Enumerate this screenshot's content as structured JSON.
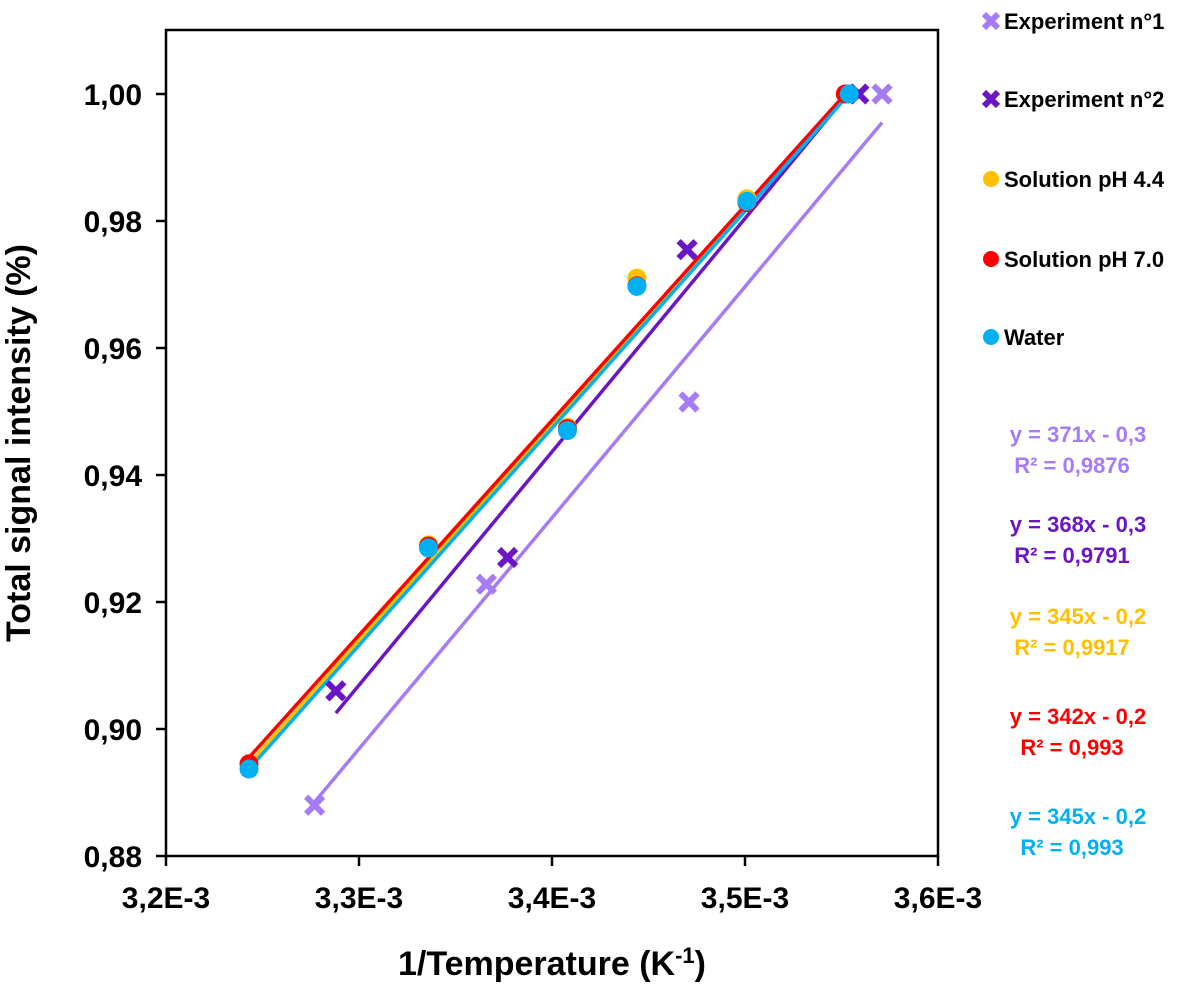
{
  "chart_data": {
    "type": "scatter",
    "xlabel": "1/Temperature (K",
    "xlabel_sup": "-1",
    "xlabel_end": ")",
    "ylabel": "Total signal intensity (%)",
    "xlim": [
      0.0032,
      0.0036
    ],
    "ylim": [
      0.88,
      1.01
    ],
    "x_ticks": [
      0.0032,
      0.0033,
      0.0034,
      0.0035,
      0.0036
    ],
    "x_tick_labels": [
      "3,2E-3",
      "3,3E-3",
      "3,4E-3",
      "3,5E-3",
      "3,6E-3"
    ],
    "y_ticks": [
      0.88,
      0.9,
      0.92,
      0.94,
      0.96,
      0.98,
      1.0
    ],
    "y_tick_labels": [
      "0,88",
      "0,90",
      "0,92",
      "0,94",
      "0,96",
      "0,98",
      "1,00"
    ],
    "grid": false,
    "legend_position": "right",
    "series": [
      {
        "name": "Experiment n°1",
        "marker": "x",
        "color": "#A57CF5",
        "points": [
          [
            0.003277,
            0.888
          ],
          [
            0.003366,
            0.9228
          ],
          [
            0.003471,
            0.9515
          ],
          [
            0.003571,
            1.0
          ]
        ],
        "trendline": [
          [
            0.003277,
            0.8885
          ],
          [
            0.003571,
            0.9955
          ]
        ],
        "equation": "y = 371x - 0,3",
        "r2": "R² = 0,9876"
      },
      {
        "name": "Experiment n°2",
        "marker": "x",
        "color": "#6A16C4",
        "points": [
          [
            0.003288,
            0.906
          ],
          [
            0.003377,
            0.927
          ],
          [
            0.00347,
            0.9755
          ],
          [
            0.003559,
            1.0
          ]
        ],
        "trendline": [
          [
            0.003288,
            0.9025
          ],
          [
            0.003552,
            0.9995
          ]
        ],
        "equation": "y = 368x - 0,3",
        "r2": "R² = 0,9791"
      },
      {
        "name": "Solution pH 4.4",
        "marker": "circle",
        "color": "#FFC000",
        "points": [
          [
            0.003243,
            0.8945
          ],
          [
            0.003336,
            0.929
          ],
          [
            0.003408,
            0.9475
          ],
          [
            0.003444,
            0.971
          ],
          [
            0.003501,
            0.9835
          ],
          [
            0.003552,
            1.0
          ]
        ],
        "trendline": [
          [
            0.003243,
            0.8945
          ],
          [
            0.003552,
            1.0
          ]
        ],
        "equation": "y = 345x - 0,2",
        "r2": "R² = 0,9917"
      },
      {
        "name": "Solution pH 7.0",
        "marker": "circle",
        "color": "#FF0000",
        "points": [
          [
            0.003243,
            0.8945
          ],
          [
            0.003336,
            0.9288
          ],
          [
            0.003408,
            0.9473
          ],
          [
            0.003444,
            0.9698
          ],
          [
            0.003501,
            0.9829
          ],
          [
            0.003552,
            1.0
          ]
        ],
        "trendline": [
          [
            0.003243,
            0.8955
          ],
          [
            0.003552,
            1.0
          ]
        ],
        "equation": "y = 342x - 0,2",
        "r2": "R² = 0,993"
      },
      {
        "name": "Water",
        "marker": "circle",
        "color": "#00B0F0",
        "points": [
          [
            0.003243,
            0.8937
          ],
          [
            0.003336,
            0.9285
          ],
          [
            0.003408,
            0.947
          ],
          [
            0.003444,
            0.9697
          ],
          [
            0.003501,
            0.9831
          ],
          [
            0.003554,
            1.0
          ]
        ],
        "trendline": [
          [
            0.003243,
            0.8937
          ],
          [
            0.003554,
            1.0
          ]
        ],
        "equation": "y = 345x - 0,2",
        "r2": "R² = 0,993"
      }
    ]
  }
}
